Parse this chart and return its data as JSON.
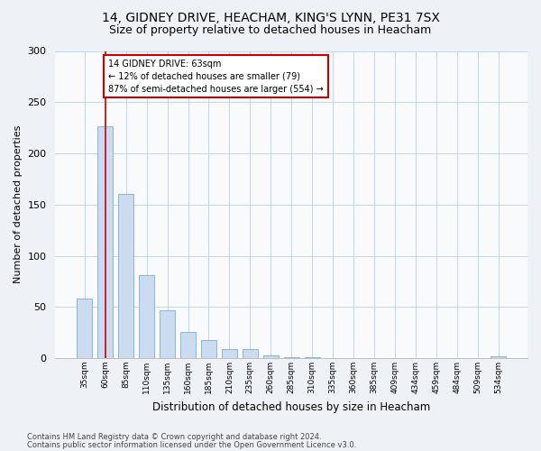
{
  "title_line1": "14, GIDNEY DRIVE, HEACHAM, KING'S LYNN, PE31 7SX",
  "title_line2": "Size of property relative to detached houses in Heacham",
  "xlabel": "Distribution of detached houses by size in Heacham",
  "ylabel": "Number of detached properties",
  "footer_line1": "Contains HM Land Registry data © Crown copyright and database right 2024.",
  "footer_line2": "Contains public sector information licensed under the Open Government Licence v3.0.",
  "annotation_line1": "14 GIDNEY DRIVE: 63sqm",
  "annotation_line2": "← 12% of detached houses are smaller (79)",
  "annotation_line3": "87% of semi-detached houses are larger (554) →",
  "bar_labels": [
    "35sqm",
    "60sqm",
    "85sqm",
    "110sqm",
    "135sqm",
    "160sqm",
    "185sqm",
    "210sqm",
    "235sqm",
    "260sqm",
    "285sqm",
    "310sqm",
    "335sqm",
    "360sqm",
    "385sqm",
    "409sqm",
    "434sqm",
    "459sqm",
    "484sqm",
    "509sqm",
    "534sqm"
  ],
  "bar_values": [
    58,
    226,
    160,
    81,
    47,
    26,
    18,
    9,
    9,
    3,
    1,
    1,
    0,
    0,
    0,
    0,
    0,
    0,
    0,
    0,
    2
  ],
  "bar_color": "#ccdcf0",
  "bar_edgecolor": "#7aaed0",
  "vline_x": 1.0,
  "vline_color": "#cc0000",
  "ylim": [
    0,
    300
  ],
  "yticks": [
    0,
    50,
    100,
    150,
    200,
    250,
    300
  ],
  "bg_color": "#eef2f7",
  "plot_bg_color": "#f8fafc",
  "grid_color": "#c5d5e8",
  "title_fontsize": 10,
  "subtitle_fontsize": 9,
  "annotation_box_color": "#cc0000",
  "bar_width": 0.75
}
